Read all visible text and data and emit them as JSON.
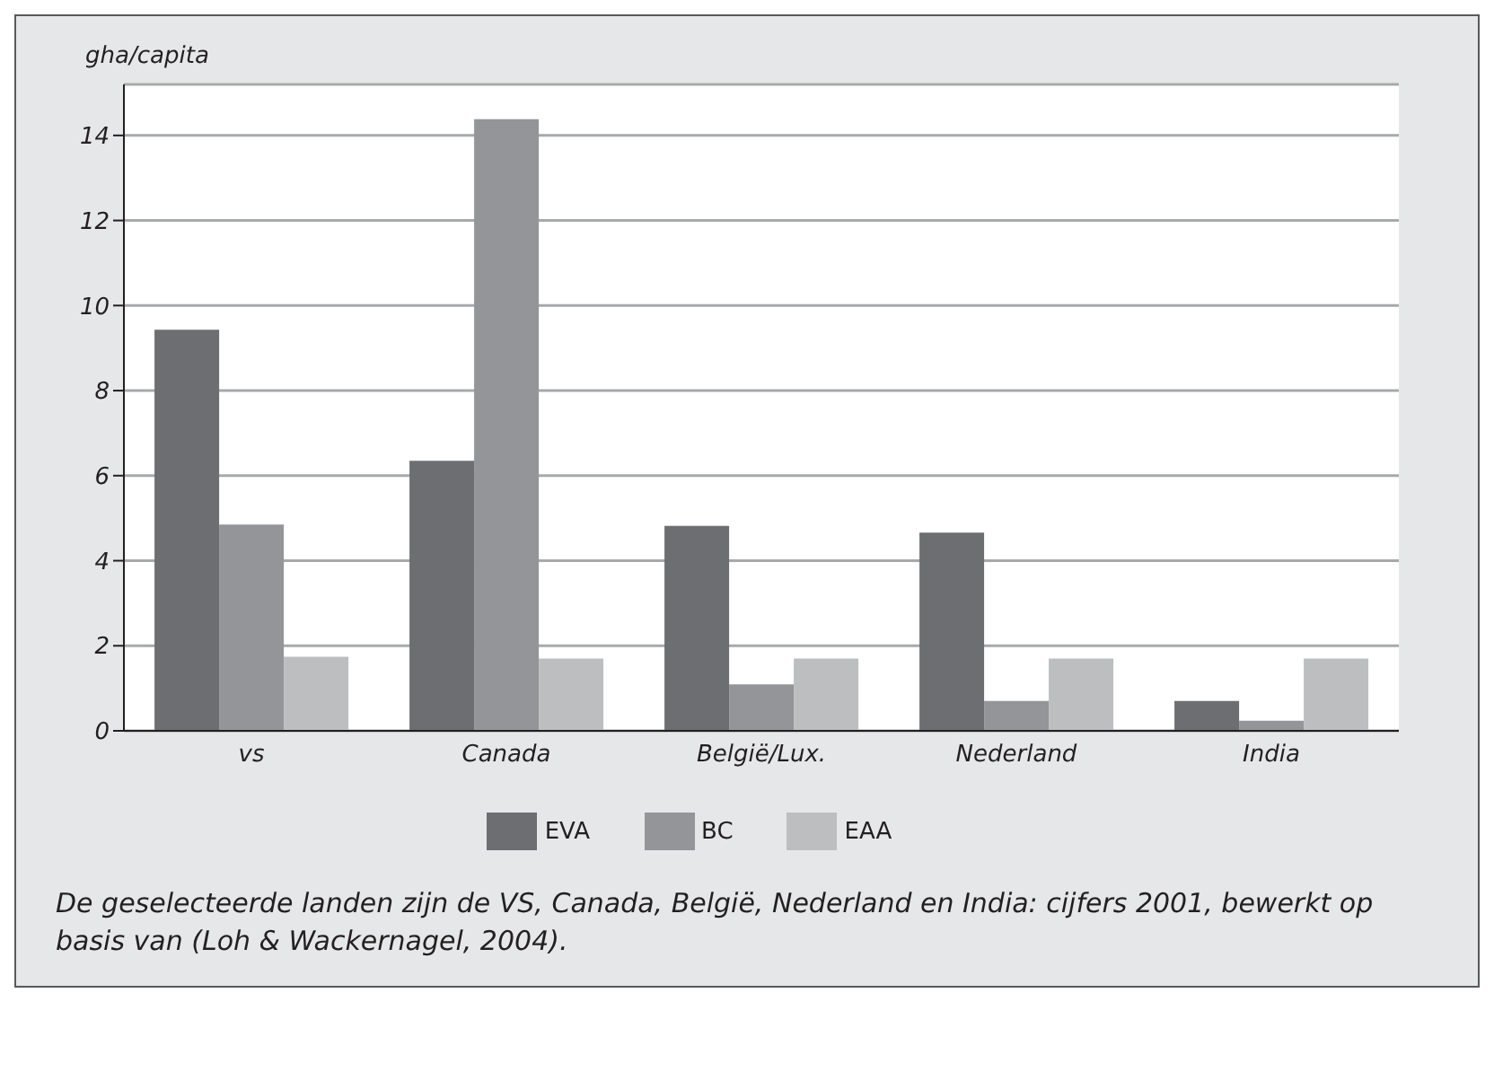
{
  "chart_data": {
    "type": "bar",
    "ylabel": "gha/capita",
    "categories": [
      "vs",
      "Canada",
      "België/Lux.",
      "Nederland",
      "India"
    ],
    "series": [
      {
        "name": "EVA",
        "color": "#6d6e71",
        "values": [
          9.43,
          6.35,
          4.82,
          4.66,
          0.7
        ]
      },
      {
        "name": "BC",
        "color": "#939598",
        "values": [
          4.85,
          14.38,
          1.09,
          0.7,
          0.24
        ]
      },
      {
        "name": "EAA",
        "color": "#bcbec0",
        "values": [
          1.74,
          1.7,
          1.7,
          1.7,
          1.7
        ]
      }
    ],
    "ylim": [
      0,
      15.2
    ],
    "yticks": [
      0,
      2,
      4,
      6,
      8,
      10,
      12,
      14
    ],
    "grid": "y",
    "legend": "bottom",
    "annotations": [
      "De geselecteerde landen zijn de VS, Canada, België, Nederland en India: cijfers 2001, bewerkt op basis van (Loh & Wackernagel, 2004)."
    ]
  }
}
